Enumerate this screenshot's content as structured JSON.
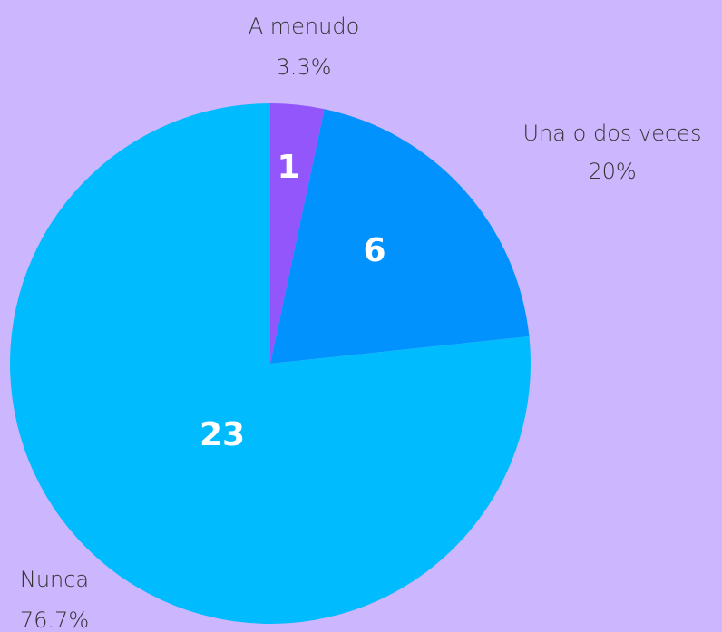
{
  "chart_data": {
    "type": "pie",
    "categories": [
      "A menudo",
      "Una o dos veces",
      "Nunca"
    ],
    "values": [
      1,
      6,
      23
    ],
    "percent_labels": [
      "3.3%",
      "20%",
      "76.7%"
    ],
    "colors": [
      "#9256fb",
      "#0192fe",
      "#01bbff"
    ]
  }
}
